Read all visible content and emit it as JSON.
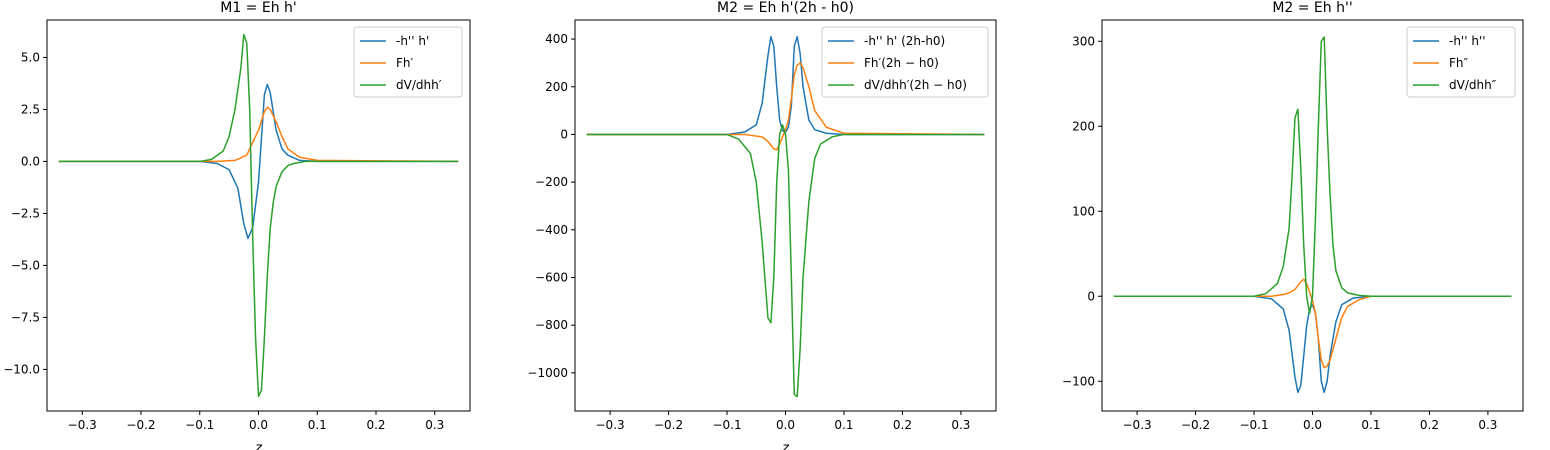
{
  "chart_data": [
    {
      "type": "line",
      "title": "M1 = Eh h'",
      "xlabel": "z",
      "ylabel": "",
      "xlim": [
        -0.36,
        0.36
      ],
      "ylim": [
        -12.0,
        6.8
      ],
      "xticks": [
        -0.3,
        -0.2,
        -0.1,
        0.0,
        0.1,
        0.2,
        0.3
      ],
      "xtick_labels": [
        "−0.3",
        "−0.2",
        "−0.1",
        "0.0",
        "0.1",
        "0.2",
        "0.3"
      ],
      "yticks": [
        -10.0,
        -7.5,
        -5.0,
        -2.5,
        0.0,
        2.5,
        5.0
      ],
      "ytick_labels": [
        "−10.0",
        "−7.5",
        "−5.0",
        "−2.5",
        "0.0",
        "2.5",
        "5.0"
      ],
      "legend_position": "top-right",
      "series": [
        {
          "name": "-h'' h'",
          "color": "#1f77b4",
          "x": [
            -0.34,
            -0.1,
            -0.07,
            -0.05,
            -0.035,
            -0.025,
            -0.018,
            -0.01,
            0.0,
            0.01,
            0.015,
            0.02,
            0.03,
            0.04,
            0.05,
            0.07,
            0.1,
            0.34
          ],
          "y": [
            0,
            0,
            -0.1,
            -0.4,
            -1.3,
            -3.0,
            -3.7,
            -3.2,
            -1.0,
            3.2,
            3.7,
            3.3,
            1.5,
            0.6,
            0.3,
            0.05,
            0,
            0
          ]
        },
        {
          "name": "Fh′",
          "color": "#ff7f0e",
          "x": [
            -0.34,
            -0.07,
            -0.04,
            -0.02,
            0.0,
            0.01,
            0.015,
            0.02,
            0.03,
            0.04,
            0.05,
            0.07,
            0.1,
            0.34
          ],
          "y": [
            0,
            0,
            0.05,
            0.3,
            1.5,
            2.4,
            2.6,
            2.5,
            1.9,
            1.2,
            0.6,
            0.2,
            0.05,
            0
          ]
        },
        {
          "name": "dV/dhh′",
          "color": "#2ca02c",
          "x": [
            -0.34,
            -0.1,
            -0.08,
            -0.06,
            -0.05,
            -0.04,
            -0.03,
            -0.025,
            -0.02,
            -0.015,
            -0.01,
            -0.005,
            0.0,
            0.005,
            0.01,
            0.015,
            0.02,
            0.025,
            0.03,
            0.04,
            0.05,
            0.06,
            0.08,
            0.1,
            0.34
          ],
          "y": [
            0,
            0,
            0.1,
            0.5,
            1.2,
            2.5,
            4.5,
            6.1,
            5.7,
            2.5,
            -3.5,
            -8.5,
            -11.3,
            -11.0,
            -8.5,
            -5.5,
            -3.2,
            -2.0,
            -1.2,
            -0.5,
            -0.2,
            -0.1,
            0,
            0,
            0
          ]
        }
      ]
    },
    {
      "type": "line",
      "title": "M2 = Eh h'(2h - h0)",
      "xlabel": "z",
      "ylabel": "",
      "xlim": [
        -0.36,
        0.36
      ],
      "ylim": [
        -1160,
        480
      ],
      "xticks": [
        -0.3,
        -0.2,
        -0.1,
        0.0,
        0.1,
        0.2,
        0.3
      ],
      "xtick_labels": [
        "−0.3",
        "−0.2",
        "−0.1",
        "0.0",
        "0.1",
        "0.2",
        "0.3"
      ],
      "yticks": [
        -1000,
        -800,
        -600,
        -400,
        -200,
        0,
        200,
        400
      ],
      "ytick_labels": [
        "−1000",
        "−800",
        "−600",
        "−400",
        "−200",
        "0",
        "200",
        "400"
      ],
      "legend_position": "top-right",
      "series": [
        {
          "name": "-h'' h' (2h-h0)",
          "color": "#1f77b4",
          "x": [
            -0.34,
            -0.1,
            -0.07,
            -0.05,
            -0.04,
            -0.03,
            -0.025,
            -0.02,
            -0.015,
            -0.01,
            -0.005,
            0.0,
            0.005,
            0.01,
            0.015,
            0.02,
            0.025,
            0.03,
            0.04,
            0.05,
            0.07,
            0.1,
            0.34
          ],
          "y": [
            0,
            0,
            10,
            40,
            130,
            330,
            410,
            370,
            200,
            60,
            15,
            10,
            30,
            120,
            370,
            410,
            340,
            200,
            60,
            20,
            5,
            0,
            0
          ]
        },
        {
          "name": "Fh′(2h − h0)",
          "color": "#ff7f0e",
          "x": [
            -0.34,
            -0.07,
            -0.04,
            -0.03,
            -0.02,
            -0.015,
            -0.01,
            -0.005,
            0.0,
            0.005,
            0.01,
            0.015,
            0.02,
            0.025,
            0.03,
            0.04,
            0.05,
            0.07,
            0.1,
            0.34
          ],
          "y": [
            0,
            0,
            -10,
            -30,
            -60,
            -65,
            -40,
            -10,
            20,
            60,
            150,
            250,
            290,
            300,
            280,
            200,
            100,
            30,
            5,
            0
          ]
        },
        {
          "name": "dV/dhh′(2h − h0)",
          "color": "#2ca02c",
          "x": [
            -0.34,
            -0.1,
            -0.08,
            -0.06,
            -0.05,
            -0.04,
            -0.03,
            -0.025,
            -0.02,
            -0.015,
            -0.01,
            -0.005,
            0.0,
            0.005,
            0.01,
            0.015,
            0.02,
            0.025,
            0.03,
            0.04,
            0.05,
            0.06,
            0.08,
            0.1,
            0.34
          ],
          "y": [
            0,
            0,
            -20,
            -80,
            -200,
            -450,
            -770,
            -790,
            -600,
            -200,
            0,
            40,
            0,
            -150,
            -600,
            -1090,
            -1100,
            -900,
            -600,
            -280,
            -100,
            -40,
            -10,
            0,
            0
          ]
        }
      ]
    },
    {
      "type": "line",
      "title": "M2 = Eh h''",
      "xlabel": "",
      "ylabel": "",
      "xlim": [
        -0.36,
        0.36
      ],
      "ylim": [
        -135,
        325
      ],
      "xticks": [
        -0.3,
        -0.2,
        -0.1,
        0.0,
        0.1,
        0.2,
        0.3
      ],
      "xtick_labels": [
        "−0.3",
        "−0.2",
        "−0.1",
        "0.0",
        "0.1",
        "0.2",
        "0.3"
      ],
      "yticks": [
        -100,
        0,
        100,
        200,
        300
      ],
      "ytick_labels": [
        "−100",
        "0",
        "100",
        "200",
        "300"
      ],
      "legend_position": "top-right",
      "series": [
        {
          "name": "-h'' h''",
          "color": "#1f77b4",
          "x": [
            -0.34,
            -0.1,
            -0.07,
            -0.05,
            -0.04,
            -0.03,
            -0.025,
            -0.02,
            -0.015,
            -0.01,
            -0.005,
            0.0,
            0.005,
            0.01,
            0.015,
            0.02,
            0.025,
            0.03,
            0.04,
            0.05,
            0.07,
            0.1,
            0.34
          ],
          "y": [
            0,
            0,
            -3,
            -15,
            -40,
            -95,
            -113,
            -105,
            -70,
            -35,
            -15,
            -10,
            -20,
            -50,
            -100,
            -113,
            -100,
            -70,
            -30,
            -10,
            -2,
            0,
            0
          ]
        },
        {
          "name": "Fh″",
          "color": "#ff7f0e",
          "x": [
            -0.34,
            -0.07,
            -0.05,
            -0.04,
            -0.03,
            -0.02,
            -0.015,
            -0.01,
            -0.005,
            0.0,
            0.005,
            0.01,
            0.015,
            0.02,
            0.025,
            0.03,
            0.04,
            0.05,
            0.06,
            0.08,
            0.1,
            0.34
          ],
          "y": [
            0,
            0,
            2,
            4,
            8,
            17,
            20,
            15,
            5,
            -5,
            -20,
            -50,
            -75,
            -84,
            -82,
            -75,
            -50,
            -25,
            -12,
            -4,
            0,
            0
          ]
        },
        {
          "name": "dV/dhh″",
          "color": "#2ca02c",
          "x": [
            -0.34,
            -0.1,
            -0.08,
            -0.06,
            -0.05,
            -0.04,
            -0.035,
            -0.03,
            -0.025,
            -0.02,
            -0.015,
            -0.01,
            -0.005,
            0.0,
            0.005,
            0.01,
            0.015,
            0.02,
            0.025,
            0.03,
            0.035,
            0.04,
            0.05,
            0.06,
            0.08,
            0.1,
            0.34
          ],
          "y": [
            0,
            0,
            3,
            15,
            35,
            80,
            140,
            210,
            220,
            150,
            60,
            0,
            -20,
            0,
            90,
            200,
            300,
            305,
            200,
            120,
            60,
            30,
            10,
            4,
            1,
            0,
            0
          ]
        }
      ]
    }
  ]
}
